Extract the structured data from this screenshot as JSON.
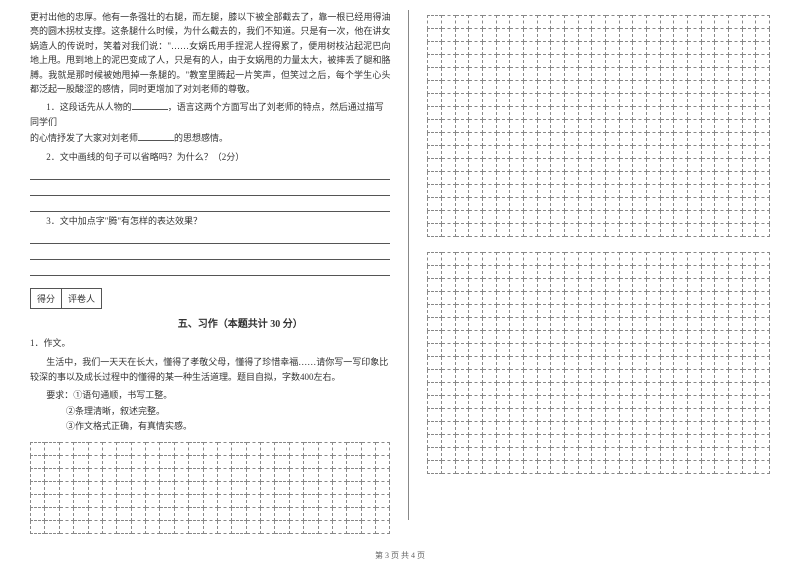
{
  "passage": "更衬出他的忠厚。他有一条强壮的右腿，而左腿，膝以下被全部截去了，靠一根已经用得油亮的圆木拐杖支撑。这条腿什么时候，为什么截去的，我们不知道。只是有一次，他在讲女娲造人的传说时，笑着对我们说：\"……女娲氏用手捏泥人捏得累了，便用树枝沾起泥巴向地上甩。甩到地上的泥巴变成了人，只是有的人，由于女娲甩的力量太大，被摔丢了腿和胳膊。我就是那时候被她甩掉一条腿的。\"教室里腾起一片笑声，但笑过之后，每个学生心头都泛起一股酸涩的感情，同时更增加了对刘老师的尊敬。",
  "q1_prefix": "1．这段话先从人物的",
  "q1_mid": "，语言这两个方面写出了刘老师的特点，然后通过描写同学们",
  "q1_line2_prefix": "的心情抒发了大家对刘老师",
  "q1_line2_suffix": "的思想感情。",
  "q2": "2．文中画线的句子可以省略吗？为什么？（2分）",
  "q3": "3．文中加点字\"腾\"有怎样的表达效果？",
  "score_label1": "得分",
  "score_label2": "评卷人",
  "section_title": "五、习作（本题共计 30 分）",
  "essay_num": "1．作文。",
  "essay_intro": "生活中，我们一天天在长大，懂得了孝敬父母，懂得了珍惜幸福……请你写一写印象比",
  "essay_intro2": "较深的事以及成长过程中的懂得的某一种生活道理。题目自拟，字数400左右。",
  "essay_req_label": "要求：①语句通顺，书写工整。",
  "essay_req2": "②条理清晰，叙述完整。",
  "essay_req3": "③作文格式正确，有真情实感。",
  "footer": "第 3 页 共 4 页",
  "grid": {
    "left_rows": 7,
    "left_cols": 25,
    "right_block1_rows": 17,
    "right_block2_rows": 17,
    "right_cols": 25
  },
  "colors": {
    "text": "#333333",
    "border": "#555555",
    "grid_border": "#888888",
    "bg": "#ffffff"
  }
}
